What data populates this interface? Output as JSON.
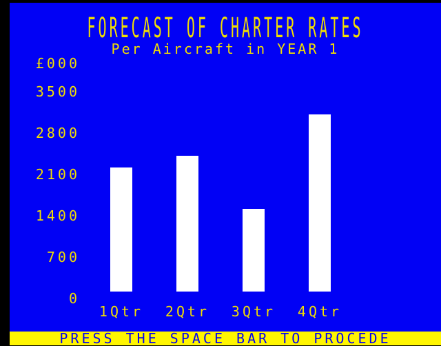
{
  "screen": {
    "status_text": "PRESS THE SPACE BAR TO PROCEDE",
    "colors": {
      "background_blue": "#0101f5",
      "text_yellow": "#f2de00",
      "status_bar_yellow": "#fff500",
      "bar_white": "#ffffff",
      "border_black": "#000000"
    }
  },
  "chart_data": {
    "type": "bar",
    "title": "FORECAST OF CHARTER RATES",
    "subtitle": "Per Aircraft in YEAR 1",
    "unit_label": "£000",
    "categories": [
      "1Qtr",
      "2Qtr",
      "3Qtr",
      "4Qtr"
    ],
    "values": [
      2100,
      2300,
      1400,
      3000
    ],
    "y_ticks": [
      3500,
      2800,
      2100,
      1400,
      700,
      0
    ],
    "ylim": [
      0,
      3500
    ],
    "xlabel": "",
    "ylabel": "£000",
    "grid": false,
    "legend": false,
    "bar_color": "#ffffff"
  }
}
